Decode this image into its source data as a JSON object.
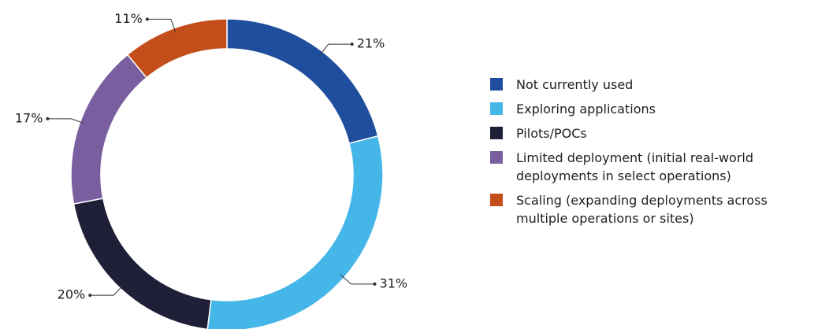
{
  "chart_data": {
    "type": "pie",
    "variant": "donut",
    "slices": [
      {
        "label": "Not currently used",
        "value": 21,
        "value_label": "21%",
        "color": "#1f4e9f"
      },
      {
        "label": "Exploring applications",
        "value": 31,
        "value_label": "31%",
        "color": "#45b6e8"
      },
      {
        "label": "Pilots/POCs",
        "value": 20,
        "value_label": "20%",
        "color": "#1f2038"
      },
      {
        "label": "Limited deployment (initial real-world deployments in select operations)",
        "value": 17,
        "value_label": "17%",
        "color": "#7a5fa0"
      },
      {
        "label": "Scaling (expanding deployments across multiple operations or sites)",
        "value": 11,
        "value_label": "11%",
        "color": "#c44e1a"
      }
    ],
    "legend_position": "right",
    "title": ""
  }
}
